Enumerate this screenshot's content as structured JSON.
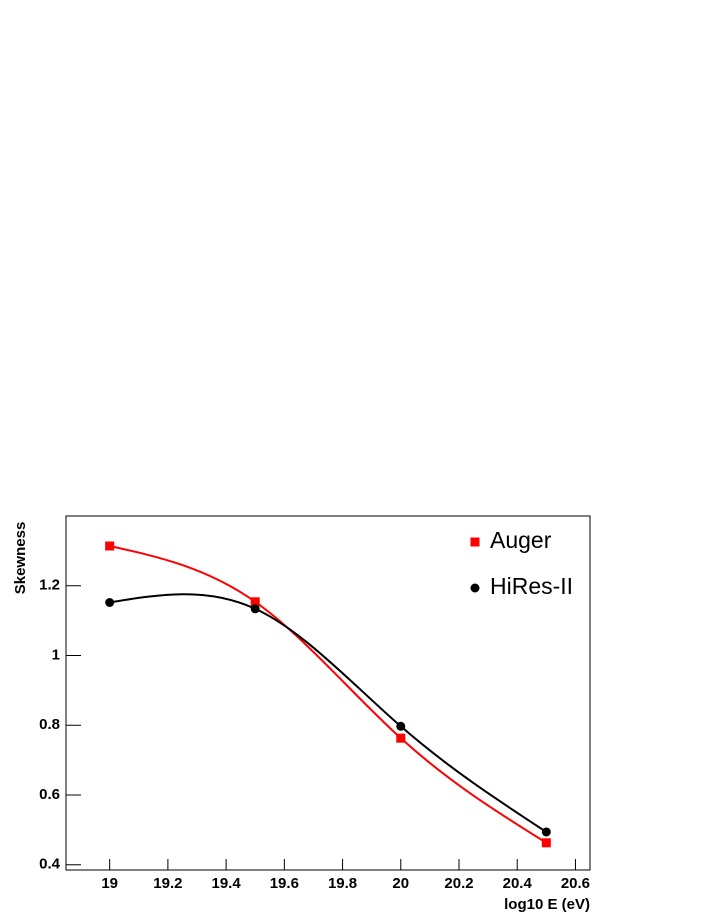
{
  "chart_data": {
    "type": "line",
    "x_label": "log10 E (eV)",
    "y_label": "Skewness",
    "x": [
      19,
      19.5,
      20,
      20.5
    ],
    "series": [
      {
        "name": "Auger",
        "color": "#ff0000",
        "marker": "square",
        "values": [
          1.314,
          1.154,
          0.763,
          0.463
        ]
      },
      {
        "name": "HiRes-II",
        "color": "#000000",
        "marker": "circle",
        "values": [
          1.152,
          1.134,
          0.797,
          0.494
        ]
      }
    ],
    "xlim": [
      18.85,
      20.65
    ],
    "ylim": [
      0.385,
      1.4
    ],
    "xticks": [
      19,
      19.2,
      19.4,
      19.6,
      19.8,
      20,
      20.2,
      20.4,
      20.6
    ],
    "yticks": [
      0.4,
      0.6,
      0.8,
      1,
      1.2
    ],
    "legend": "top-right"
  }
}
